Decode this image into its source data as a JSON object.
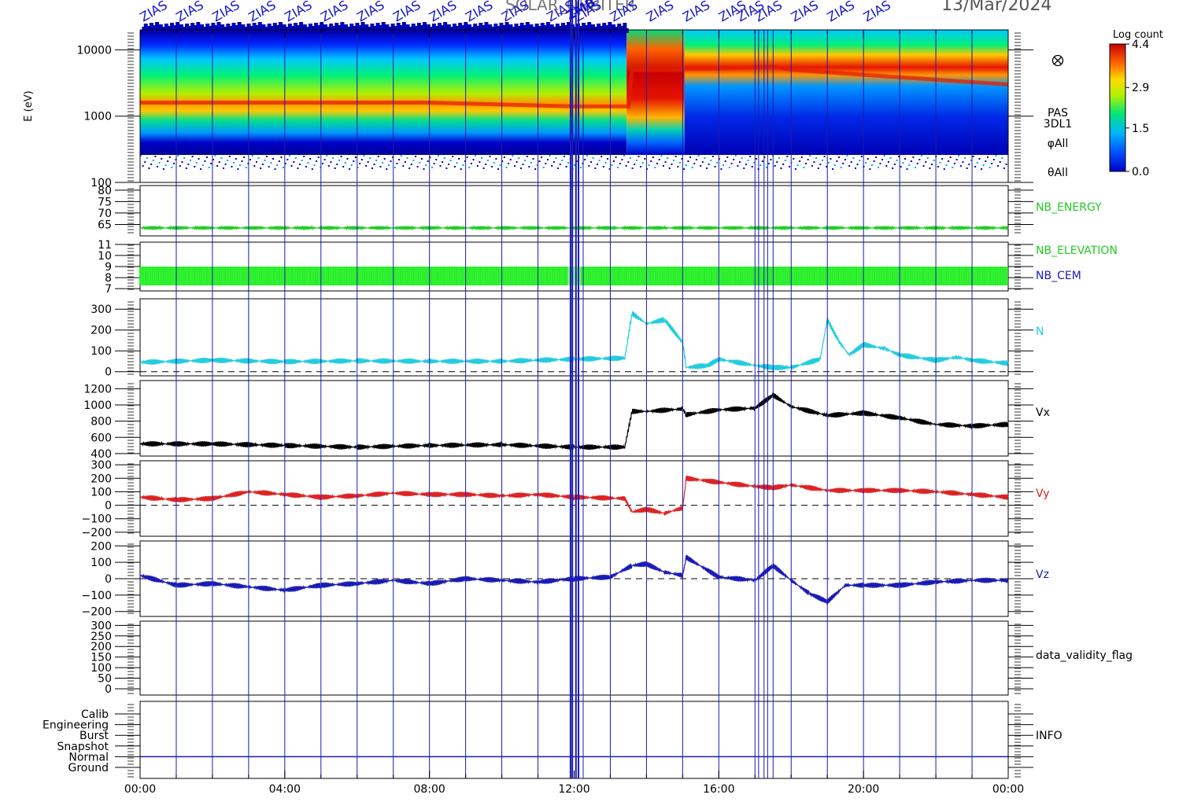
{
  "header": {
    "mission": "SOLAR_ORBITER",
    "date": "13/Mar/2024",
    "event_label": "ZIAS",
    "event_label_12": "ZMB"
  },
  "chart_data": [
    {
      "type": "heatmap",
      "name": "pas-spectrogram",
      "ylabel": "E (eV)",
      "yscale": "log",
      "yticks": [
        100,
        1000,
        10000
      ],
      "ytick_labels": [
        "100",
        "1000",
        "10000"
      ],
      "right_labels": [
        "PAS",
        "3DL1",
        "φAll",
        "θAll"
      ],
      "colorbar": {
        "title": "Log count",
        "ticks": [
          "4.4",
          "2.9",
          "1.5",
          "0.0"
        ],
        "min": 0.0,
        "max": 4.4
      },
      "peak_energy_eV": [
        [
          0,
          1600
        ],
        [
          4,
          1600
        ],
        [
          8,
          1600
        ],
        [
          12,
          1400
        ],
        [
          13.5,
          1400
        ],
        [
          13.6,
          5000
        ],
        [
          15,
          5000
        ],
        [
          15.1,
          5200
        ],
        [
          16,
          5200
        ],
        [
          17.5,
          5600
        ],
        [
          18,
          5000
        ],
        [
          20,
          4200
        ],
        [
          24,
          3000
        ]
      ],
      "ylim": [
        100,
        20000
      ]
    },
    {
      "type": "line",
      "name": "nb-energy",
      "right_label": "NB_ENERGY",
      "right_label_color": "#22cc22",
      "yticks": [
        65,
        70,
        75,
        80
      ],
      "ylim": [
        60,
        82
      ],
      "series": [
        {
          "color": "#22cc22",
          "points": [
            [
              0,
              63.5
            ],
            [
              24,
              63.5
            ]
          ]
        }
      ]
    },
    {
      "type": "line",
      "name": "nb-elevation-cem",
      "right_labels": [
        "NB_ELEVATION",
        "NB_CEM"
      ],
      "right_label_colors": [
        "#22cc22",
        "#1a1ab4"
      ],
      "yticks": [
        7,
        8,
        9,
        10,
        11
      ],
      "ylim": [
        6.8,
        11.2
      ],
      "series": [
        {
          "color": "#22ee22",
          "oscillates_between": [
            7.3,
            9.0
          ]
        }
      ]
    },
    {
      "type": "line",
      "name": "density",
      "right_label": "N",
      "right_label_color": "#22ccdd",
      "yticks": [
        0,
        100,
        200,
        300
      ],
      "ylim": [
        -20,
        350
      ],
      "zero_line": true,
      "series": [
        {
          "color": "#22ccdd",
          "points": [
            [
              0,
              45
            ],
            [
              2,
              55
            ],
            [
              4,
              48
            ],
            [
              6,
              52
            ],
            [
              8,
              50
            ],
            [
              10,
              50
            ],
            [
              12,
              60
            ],
            [
              13.4,
              65
            ],
            [
              13.6,
              280
            ],
            [
              14,
              230
            ],
            [
              14.5,
              250
            ],
            [
              15,
              140
            ],
            [
              15.1,
              20
            ],
            [
              15.7,
              30
            ],
            [
              16,
              60
            ],
            [
              17,
              30
            ],
            [
              17.5,
              20
            ],
            [
              18,
              20
            ],
            [
              18.8,
              60
            ],
            [
              19,
              250
            ],
            [
              19.3,
              150
            ],
            [
              19.6,
              80
            ],
            [
              20,
              130
            ],
            [
              20.6,
              110
            ],
            [
              21,
              80
            ],
            [
              22,
              55
            ],
            [
              22.6,
              70
            ],
            [
              23,
              55
            ],
            [
              24,
              40
            ]
          ]
        }
      ]
    },
    {
      "type": "line",
      "name": "velocity-x",
      "right_label": "Vx",
      "right_label_color": "#000000",
      "yticks": [
        400,
        600,
        800,
        1000,
        1200
      ],
      "ylim": [
        370,
        1300
      ],
      "series": [
        {
          "color": "#000000",
          "points": [
            [
              0,
              520
            ],
            [
              2,
              520
            ],
            [
              4,
              500
            ],
            [
              6,
              480
            ],
            [
              8,
              500
            ],
            [
              10,
              510
            ],
            [
              12,
              480
            ],
            [
              13.4,
              480
            ],
            [
              13.6,
              920
            ],
            [
              14,
              920
            ],
            [
              15,
              950
            ],
            [
              15.1,
              880
            ],
            [
              16,
              940
            ],
            [
              17,
              960
            ],
            [
              17.5,
              1120
            ],
            [
              18,
              980
            ],
            [
              19,
              870
            ],
            [
              20,
              900
            ],
            [
              21,
              840
            ],
            [
              22,
              760
            ],
            [
              23,
              740
            ],
            [
              24,
              760
            ]
          ]
        }
      ]
    },
    {
      "type": "line",
      "name": "velocity-y",
      "right_label": "Vy",
      "right_label_color": "#dd2222",
      "yticks": [
        -200,
        -100,
        0,
        100,
        200,
        300
      ],
      "ylim": [
        -230,
        330
      ],
      "zero_line": true,
      "series": [
        {
          "color": "#dd2222",
          "points": [
            [
              0,
              60
            ],
            [
              1,
              40
            ],
            [
              2,
              50
            ],
            [
              3,
              100
            ],
            [
              4,
              80
            ],
            [
              5,
              60
            ],
            [
              6,
              70
            ],
            [
              7,
              90
            ],
            [
              8,
              80
            ],
            [
              9,
              80
            ],
            [
              10,
              70
            ],
            [
              11,
              80
            ],
            [
              12,
              60
            ],
            [
              13.4,
              50
            ],
            [
              13.6,
              -50
            ],
            [
              14,
              -30
            ],
            [
              14.5,
              -60
            ],
            [
              15,
              -20
            ],
            [
              15.1,
              200
            ],
            [
              16,
              170
            ],
            [
              17,
              140
            ],
            [
              17.5,
              130
            ],
            [
              18,
              150
            ],
            [
              19,
              110
            ],
            [
              20,
              110
            ],
            [
              21,
              110
            ],
            [
              22,
              100
            ],
            [
              23,
              80
            ],
            [
              24,
              60
            ]
          ]
        }
      ]
    },
    {
      "type": "line",
      "name": "velocity-z",
      "right_label": "Vz",
      "right_label_color": "#1a1ab4",
      "yticks": [
        -200,
        -100,
        0,
        100,
        200
      ],
      "ylim": [
        -230,
        230
      ],
      "zero_line": true,
      "series": [
        {
          "color": "#1a1ab4",
          "points": [
            [
              0,
              20
            ],
            [
              1,
              -40
            ],
            [
              2,
              -30
            ],
            [
              3,
              -50
            ],
            [
              4,
              -70
            ],
            [
              5,
              -40
            ],
            [
              6,
              -30
            ],
            [
              7,
              -10
            ],
            [
              8,
              -30
            ],
            [
              9,
              0
            ],
            [
              10,
              -10
            ],
            [
              11,
              -20
            ],
            [
              12,
              0
            ],
            [
              13,
              10
            ],
            [
              13.6,
              80
            ],
            [
              14,
              90
            ],
            [
              14.5,
              40
            ],
            [
              15,
              20
            ],
            [
              15.1,
              130
            ],
            [
              16,
              10
            ],
            [
              17,
              -10
            ],
            [
              17.5,
              80
            ],
            [
              18,
              -10
            ],
            [
              18.5,
              -90
            ],
            [
              19,
              -140
            ],
            [
              19.5,
              -40
            ],
            [
              20,
              -40
            ],
            [
              21,
              -40
            ],
            [
              22,
              -20
            ],
            [
              23,
              -10
            ],
            [
              24,
              -10
            ]
          ]
        }
      ]
    },
    {
      "type": "line",
      "name": "data-validity",
      "right_label": "data_validity_flag",
      "right_label_color": "#000000",
      "yticks": [
        0,
        50,
        100,
        150,
        200,
        250,
        300
      ],
      "ylim": [
        -30,
        320
      ],
      "series": []
    },
    {
      "type": "table",
      "name": "info",
      "right_label": "INFO",
      "right_label_color": "#000000",
      "rows": [
        "Calib",
        "Engineering",
        "Burst",
        "Snapshot",
        "Normal",
        "Ground"
      ],
      "normal_line": true
    }
  ],
  "xaxis": {
    "tick_labels": [
      "00:00",
      "04:00",
      "08:00",
      "12:00",
      "16:00",
      "20:00",
      "00:00"
    ],
    "range_hours": [
      0,
      24
    ]
  },
  "events": {
    "line_color": "#1a1ab4",
    "ZIAS_hours": [
      1,
      2,
      3,
      4,
      5,
      6,
      7,
      8,
      9,
      10,
      11,
      12.25,
      13,
      14,
      15,
      16,
      17,
      17.5,
      18,
      19,
      20,
      21,
      22,
      23
    ],
    "ZMB_hours": [
      11.9,
      11.95,
      12.05,
      12.12
    ],
    "extra_hours": [
      17.1,
      17.25,
      17.35
    ]
  },
  "colors": {
    "axis": "#000000",
    "event": "#1a1ab4",
    "label": "#1414c8"
  }
}
